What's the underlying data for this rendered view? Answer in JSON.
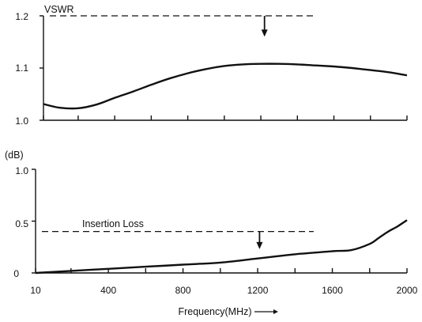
{
  "chart_data": [
    {
      "type": "line",
      "title": "",
      "ylabel": "VSWR",
      "xlim": [
        10,
        2000
      ],
      "ylim": [
        1.0,
        1.2
      ],
      "yticks": [
        1.0,
        1.1,
        1.2
      ],
      "ytick_labels": [
        "1.0",
        "1.1",
        "1.2"
      ],
      "xticks": [
        10,
        200,
        400,
        600,
        800,
        1000,
        1200,
        1400,
        1600,
        1800,
        2000
      ],
      "grid": false,
      "series": [
        {
          "x": [
            10,
            100,
            200,
            300,
            400,
            500,
            600,
            700,
            800,
            900,
            1000,
            1100,
            1200,
            1300,
            1400,
            1500,
            1600,
            1700,
            1800,
            1900,
            2000
          ],
          "y": [
            1.031,
            1.024,
            1.023,
            1.03,
            1.043,
            1.055,
            1.068,
            1.08,
            1.09,
            1.098,
            1.104,
            1.107,
            1.108,
            1.108,
            1.107,
            1.105,
            1.103,
            1.1,
            1.096,
            1.092,
            1.086
          ]
        }
      ],
      "limit_line": {
        "value": 1.2,
        "x_range": [
          10,
          1500
        ],
        "style": "dashed"
      },
      "arrow": {
        "x": 1220,
        "from": 1.2,
        "to": 1.16
      }
    },
    {
      "type": "line",
      "title": "",
      "ylabel": "(dB)",
      "xlabel": "Frequency(MHz)",
      "xlabel_arrow": "→",
      "xlim": [
        10,
        2000
      ],
      "ylim": [
        0,
        1.0
      ],
      "yticks": [
        0,
        0.5,
        1.0
      ],
      "ytick_labels": [
        "0",
        "0.5",
        "1.0"
      ],
      "xticks": [
        10,
        200,
        400,
        600,
        800,
        1000,
        1200,
        1400,
        1600,
        1800,
        2000
      ],
      "xtick_labels": [
        "10",
        "400",
        "800",
        "1200",
        "1600",
        "2000"
      ],
      "xtick_label_values": [
        10,
        400,
        800,
        1200,
        1600,
        2000
      ],
      "grid": false,
      "series": [
        {
          "x": [
            10,
            200,
            400,
            600,
            800,
            1000,
            1200,
            1400,
            1600,
            1700,
            1800,
            1850,
            1900,
            1950,
            2000
          ],
          "y": [
            0.0,
            0.02,
            0.04,
            0.06,
            0.08,
            0.1,
            0.14,
            0.18,
            0.21,
            0.22,
            0.28,
            0.34,
            0.4,
            0.45,
            0.51
          ]
        }
      ],
      "limit_line": {
        "value": 0.4,
        "x_range": [
          10,
          1500
        ],
        "style": "dashed",
        "label": "Insertion Loss"
      },
      "arrow": {
        "x": 1210,
        "from": 0.4,
        "to": 0.23
      }
    }
  ]
}
